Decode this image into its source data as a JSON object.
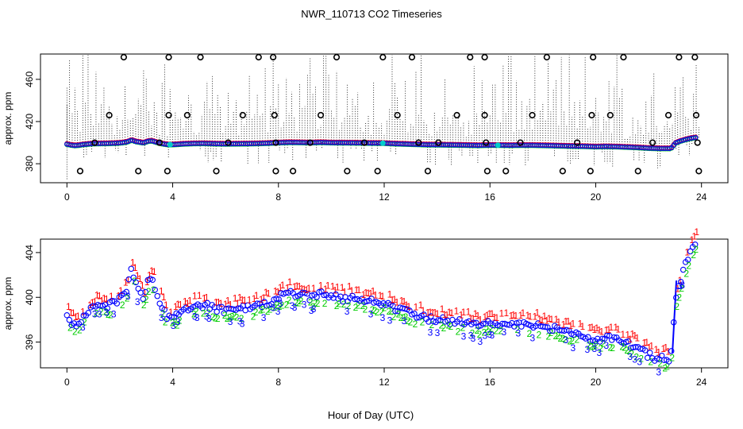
{
  "chart_data": {
    "type": "scatter",
    "title": "NWR_110713  CO2 Timeseries",
    "xlabel": "Hour of Day (UTC)",
    "x_ticks": [
      0,
      4,
      8,
      12,
      16,
      20,
      24
    ],
    "x_tick_labels": [
      "0",
      "4",
      "8",
      "12",
      "16",
      "20",
      "24"
    ],
    "xlim": [
      -1,
      25
    ],
    "colors": {
      "series1": "#ff0000",
      "series2": "#00cc00",
      "series3": "#0000ff",
      "blue_line": "#0000ff",
      "cyan": "#00cccc",
      "black": "#000000"
    },
    "panels": [
      {
        "name": "top",
        "ylabel": "approx. ppm",
        "ylim": [
          362,
          484
        ],
        "y_ticks": [
          380,
          420,
          460
        ],
        "y_tick_labels": [
          "380",
          "420",
          "460"
        ],
        "description": "flagged outliers (circles) and vertical dotted lines above the baseline series",
        "outlier_circles": [
          [
            2.15,
            481
          ],
          [
            3.85,
            481
          ],
          [
            5.05,
            481
          ],
          [
            7.25,
            481
          ],
          [
            7.8,
            481
          ],
          [
            10.2,
            481
          ],
          [
            11.95,
            481
          ],
          [
            13.05,
            481
          ],
          [
            15.25,
            481
          ],
          [
            15.8,
            481
          ],
          [
            18.15,
            481
          ],
          [
            19.9,
            481
          ],
          [
            21.05,
            481
          ],
          [
            23.15,
            481
          ],
          [
            23.75,
            481
          ],
          [
            1.6,
            426
          ],
          [
            3.85,
            426
          ],
          [
            4.55,
            426
          ],
          [
            6.65,
            426
          ],
          [
            7.85,
            426
          ],
          [
            9.6,
            426
          ],
          [
            12.5,
            426
          ],
          [
            14.75,
            426
          ],
          [
            15.8,
            426
          ],
          [
            17.6,
            426
          ],
          [
            19.85,
            426
          ],
          [
            20.55,
            426
          ],
          [
            22.75,
            426
          ],
          [
            23.8,
            426
          ],
          [
            0.5,
            373
          ],
          [
            2.7,
            373
          ],
          [
            3.8,
            373
          ],
          [
            5.65,
            373
          ],
          [
            7.9,
            373
          ],
          [
            8.55,
            373
          ],
          [
            10.6,
            373
          ],
          [
            11.75,
            373
          ],
          [
            13.65,
            373
          ],
          [
            15.9,
            373
          ],
          [
            16.6,
            373
          ],
          [
            18.75,
            373
          ],
          [
            19.8,
            373
          ],
          [
            21.6,
            373
          ],
          [
            23.9,
            373
          ],
          [
            1.05,
            400
          ],
          [
            3.5,
            400
          ],
          [
            6.1,
            400
          ],
          [
            7.9,
            400
          ],
          [
            9.2,
            400
          ],
          [
            11.25,
            400
          ],
          [
            13.3,
            400
          ],
          [
            14.05,
            400
          ],
          [
            15.85,
            400
          ],
          [
            17.15,
            400
          ],
          [
            19.3,
            400
          ],
          [
            22.15,
            400
          ],
          [
            23.85,
            400
          ]
        ]
      },
      {
        "name": "bottom",
        "ylabel": "approx. ppm",
        "ylim": [
          393.7,
          405.2
        ],
        "y_ticks": [
          396,
          400,
          404
        ],
        "y_tick_labels": [
          "396",
          "400",
          "404"
        ],
        "series_labels": [
          "1",
          "2",
          "3"
        ],
        "description": "series drawn with numeric glyph markers 1 (red), 2 (green), 3 (blue)"
      }
    ],
    "baseline_profile": [
      [
        0.0,
        398.6
      ],
      [
        0.15,
        397.8
      ],
      [
        0.3,
        397.3
      ],
      [
        0.45,
        397.6
      ],
      [
        0.6,
        398.2
      ],
      [
        0.8,
        398.7
      ],
      [
        1.0,
        399.1
      ],
      [
        1.3,
        399.2
      ],
      [
        1.6,
        399.3
      ],
      [
        1.9,
        399.6
      ],
      [
        2.1,
        400.0
      ],
      [
        2.3,
        400.9
      ],
      [
        2.45,
        402.5
      ],
      [
        2.6,
        401.1
      ],
      [
        2.75,
        400.5
      ],
      [
        2.9,
        399.8
      ],
      [
        3.05,
        401.3
      ],
      [
        3.2,
        401.8
      ],
      [
        3.35,
        400.7
      ],
      [
        3.5,
        399.6
      ],
      [
        3.65,
        398.8
      ],
      [
        3.85,
        398.1
      ],
      [
        4.1,
        398.3
      ],
      [
        4.4,
        398.8
      ],
      [
        4.8,
        399.2
      ],
      [
        5.2,
        399.3
      ],
      [
        5.6,
        399.0
      ],
      [
        6.0,
        398.8
      ],
      [
        6.4,
        398.9
      ],
      [
        6.8,
        399.0
      ],
      [
        7.2,
        399.2
      ],
      [
        7.6,
        399.5
      ],
      [
        8.0,
        400.0
      ],
      [
        8.4,
        400.3
      ],
      [
        8.8,
        400.2
      ],
      [
        9.2,
        400.0
      ],
      [
        9.6,
        400.3
      ],
      [
        10.0,
        400.0
      ],
      [
        10.5,
        399.9
      ],
      [
        11.0,
        399.8
      ],
      [
        11.5,
        399.6
      ],
      [
        12.0,
        399.5
      ],
      [
        12.4,
        399.0
      ],
      [
        12.8,
        398.7
      ],
      [
        13.2,
        398.4
      ],
      [
        13.6,
        398.1
      ],
      [
        14.0,
        398.0
      ],
      [
        14.4,
        397.9
      ],
      [
        14.8,
        397.8
      ],
      [
        15.2,
        397.6
      ],
      [
        15.6,
        397.4
      ],
      [
        16.0,
        397.7
      ],
      [
        16.4,
        397.6
      ],
      [
        16.8,
        397.5
      ],
      [
        17.2,
        397.6
      ],
      [
        17.6,
        397.6
      ],
      [
        18.0,
        397.4
      ],
      [
        18.4,
        397.2
      ],
      [
        18.8,
        396.9
      ],
      [
        19.2,
        396.7
      ],
      [
        19.6,
        396.5
      ],
      [
        20.0,
        396.2
      ],
      [
        20.4,
        396.4
      ],
      [
        20.8,
        396.2
      ],
      [
        21.2,
        395.8
      ],
      [
        21.6,
        395.4
      ],
      [
        22.0,
        394.8
      ],
      [
        22.4,
        394.5
      ],
      [
        22.8,
        394.5
      ],
      [
        22.9,
        395.5
      ],
      [
        23.0,
        399.5
      ],
      [
        23.2,
        401.5
      ],
      [
        23.4,
        403.0
      ],
      [
        23.6,
        404.2
      ],
      [
        23.75,
        404.8
      ]
    ]
  }
}
